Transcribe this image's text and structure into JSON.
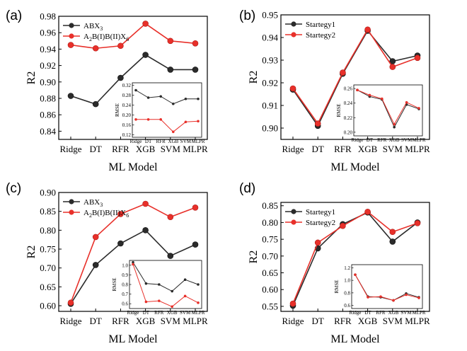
{
  "colors": {
    "series1": "#2b2b2b",
    "series2": "#e8302a",
    "axis": "#000000"
  },
  "chart_data": [
    {
      "panel_label": "(a)",
      "type": "line",
      "categories": [
        "Ridge",
        "DT",
        "RFR",
        "XGB",
        "SVM",
        "MLPR"
      ],
      "xlabel": "ML Model",
      "ylabel": "R2",
      "ylim": [
        0.83,
        0.98
      ],
      "yticks": [
        0.84,
        0.86,
        0.88,
        0.9,
        0.92,
        0.94,
        0.96,
        0.98
      ],
      "ytick_labels": [
        "0.84",
        "0.86",
        "0.88",
        "0.90",
        "0.92",
        "0.94",
        "0.96",
        "0.98"
      ],
      "legend_position": "top-left",
      "series": [
        {
          "name_base": "ABX",
          "name_sub": "3",
          "values": [
            0.883,
            0.873,
            0.905,
            0.933,
            0.915,
            0.915
          ]
        },
        {
          "name_base": "A",
          "name_sub": "2",
          "name_mid": "B(I)B(II)X",
          "name_sub2": "6",
          "values": [
            0.945,
            0.941,
            0.944,
            0.971,
            0.95,
            0.947
          ]
        }
      ],
      "inset": {
        "ylabel": "RMSE",
        "ylim": [
          0.11,
          0.33
        ],
        "yticks": [
          0.12,
          0.16,
          0.2,
          0.24,
          0.28,
          0.32
        ],
        "ytick_labels": [
          "0.12",
          "0.16",
          "0.20",
          "0.24",
          "0.28",
          "0.32"
        ],
        "series": [
          {
            "values": [
              0.3,
              0.27,
              0.275,
              0.245,
              0.265,
              0.265
            ]
          },
          {
            "values": [
              0.182,
              0.182,
              0.182,
              0.132,
              0.172,
              0.175
            ]
          }
        ]
      }
    },
    {
      "panel_label": "(b)",
      "type": "line",
      "categories": [
        "Ridge",
        "DT",
        "RFR",
        "XGB",
        "SVM",
        "MLPR"
      ],
      "xlabel": "ML Model",
      "ylabel": "R2",
      "ylim": [
        0.895,
        0.95
      ],
      "yticks": [
        0.9,
        0.91,
        0.92,
        0.93,
        0.94,
        0.95
      ],
      "ytick_labels": [
        "0.90",
        "0.91",
        "0.92",
        "0.93",
        "0.94",
        "0.95"
      ],
      "legend_position": "top-left",
      "series": [
        {
          "name": "Startegy1",
          "values": [
            0.917,
            0.901,
            0.924,
            0.943,
            0.9295,
            0.932
          ]
        },
        {
          "name": "Startegy2",
          "values": [
            0.9175,
            0.902,
            0.9245,
            0.9435,
            0.927,
            0.931
          ]
        }
      ],
      "inset": {
        "ylabel": "RMSE",
        "ylim": [
          0.195,
          0.265
        ],
        "yticks": [
          0.2,
          0.22,
          0.24,
          0.26
        ],
        "ytick_labels": [
          "0.20",
          "0.22",
          "0.24",
          "0.26"
        ],
        "series": [
          {
            "values": [
              0.258,
              0.249,
              0.245,
              0.207,
              0.238,
              0.232
            ]
          },
          {
            "values": [
              0.258,
              0.251,
              0.246,
              0.211,
              0.241,
              0.233
            ]
          }
        ]
      }
    },
    {
      "panel_label": "(c)",
      "type": "line",
      "categories": [
        "Ridge",
        "DT",
        "RFR",
        "XGB",
        "SVM",
        "MLPR"
      ],
      "xlabel": "ML Model",
      "ylabel": "R2",
      "ylim": [
        0.585,
        0.9
      ],
      "yticks": [
        0.6,
        0.65,
        0.7,
        0.75,
        0.8,
        0.85,
        0.9
      ],
      "ytick_labels": [
        "0.60",
        "0.65",
        "0.70",
        "0.75",
        "0.80",
        "0.85",
        "0.90"
      ],
      "legend_position": "top-left",
      "series": [
        {
          "name_base": "ABX",
          "name_sub": "3",
          "values": [
            0.605,
            0.708,
            0.765,
            0.8,
            0.732,
            0.762
          ]
        },
        {
          "name_base": "A",
          "name_sub": "2",
          "name_mid": "B(I)B(II)X",
          "name_sub2": "6",
          "values": [
            0.608,
            0.782,
            0.843,
            0.87,
            0.835,
            0.86
          ]
        }
      ],
      "inset": {
        "ylabel": "RMSE",
        "ylim": [
          0.55,
          1.05
        ],
        "yticks": [
          0.6,
          0.7,
          0.8,
          0.9,
          1.0
        ],
        "ytick_labels": [
          "0.6",
          "0.7",
          "0.8",
          "0.9",
          "1.0"
        ],
        "series": [
          {
            "values": [
              1.03,
              0.81,
              0.8,
              0.73,
              0.85,
              0.8
            ]
          },
          {
            "values": [
              1.01,
              0.62,
              0.63,
              0.57,
              0.68,
              0.61
            ]
          }
        ]
      }
    },
    {
      "panel_label": "(d)",
      "type": "line",
      "categories": [
        "Ridge",
        "DT",
        "RFR",
        "XGB",
        "SVM",
        "MLPR"
      ],
      "xlabel": "ML Model",
      "ylabel": "R2",
      "ylim": [
        0.535,
        0.86
      ],
      "yticks": [
        0.55,
        0.6,
        0.65,
        0.7,
        0.75,
        0.8,
        0.85
      ],
      "ytick_labels": [
        "0.55",
        "0.60",
        "0.65",
        "0.70",
        "0.75",
        "0.80",
        "0.85"
      ],
      "legend_position": "top-left",
      "series": [
        {
          "name": "Startegy1",
          "values": [
            0.552,
            0.723,
            0.795,
            0.83,
            0.743,
            0.8
          ]
        },
        {
          "name": "Startegy2",
          "values": [
            0.558,
            0.74,
            0.79,
            0.832,
            0.772,
            0.798
          ]
        }
      ],
      "inset": {
        "ylabel": "RMSE",
        "ylim": [
          0.55,
          1.25
        ],
        "yticks": [
          0.6,
          0.8,
          1.0,
          1.2
        ],
        "ytick_labels": [
          "0.6",
          "0.8",
          "1.0",
          "1.2"
        ],
        "series": [
          {
            "values": [
              1.09,
              0.74,
              0.73,
              0.68,
              0.79,
              0.73
            ]
          },
          {
            "values": [
              1.09,
              0.73,
              0.74,
              0.68,
              0.77,
              0.72
            ]
          }
        ]
      }
    }
  ]
}
